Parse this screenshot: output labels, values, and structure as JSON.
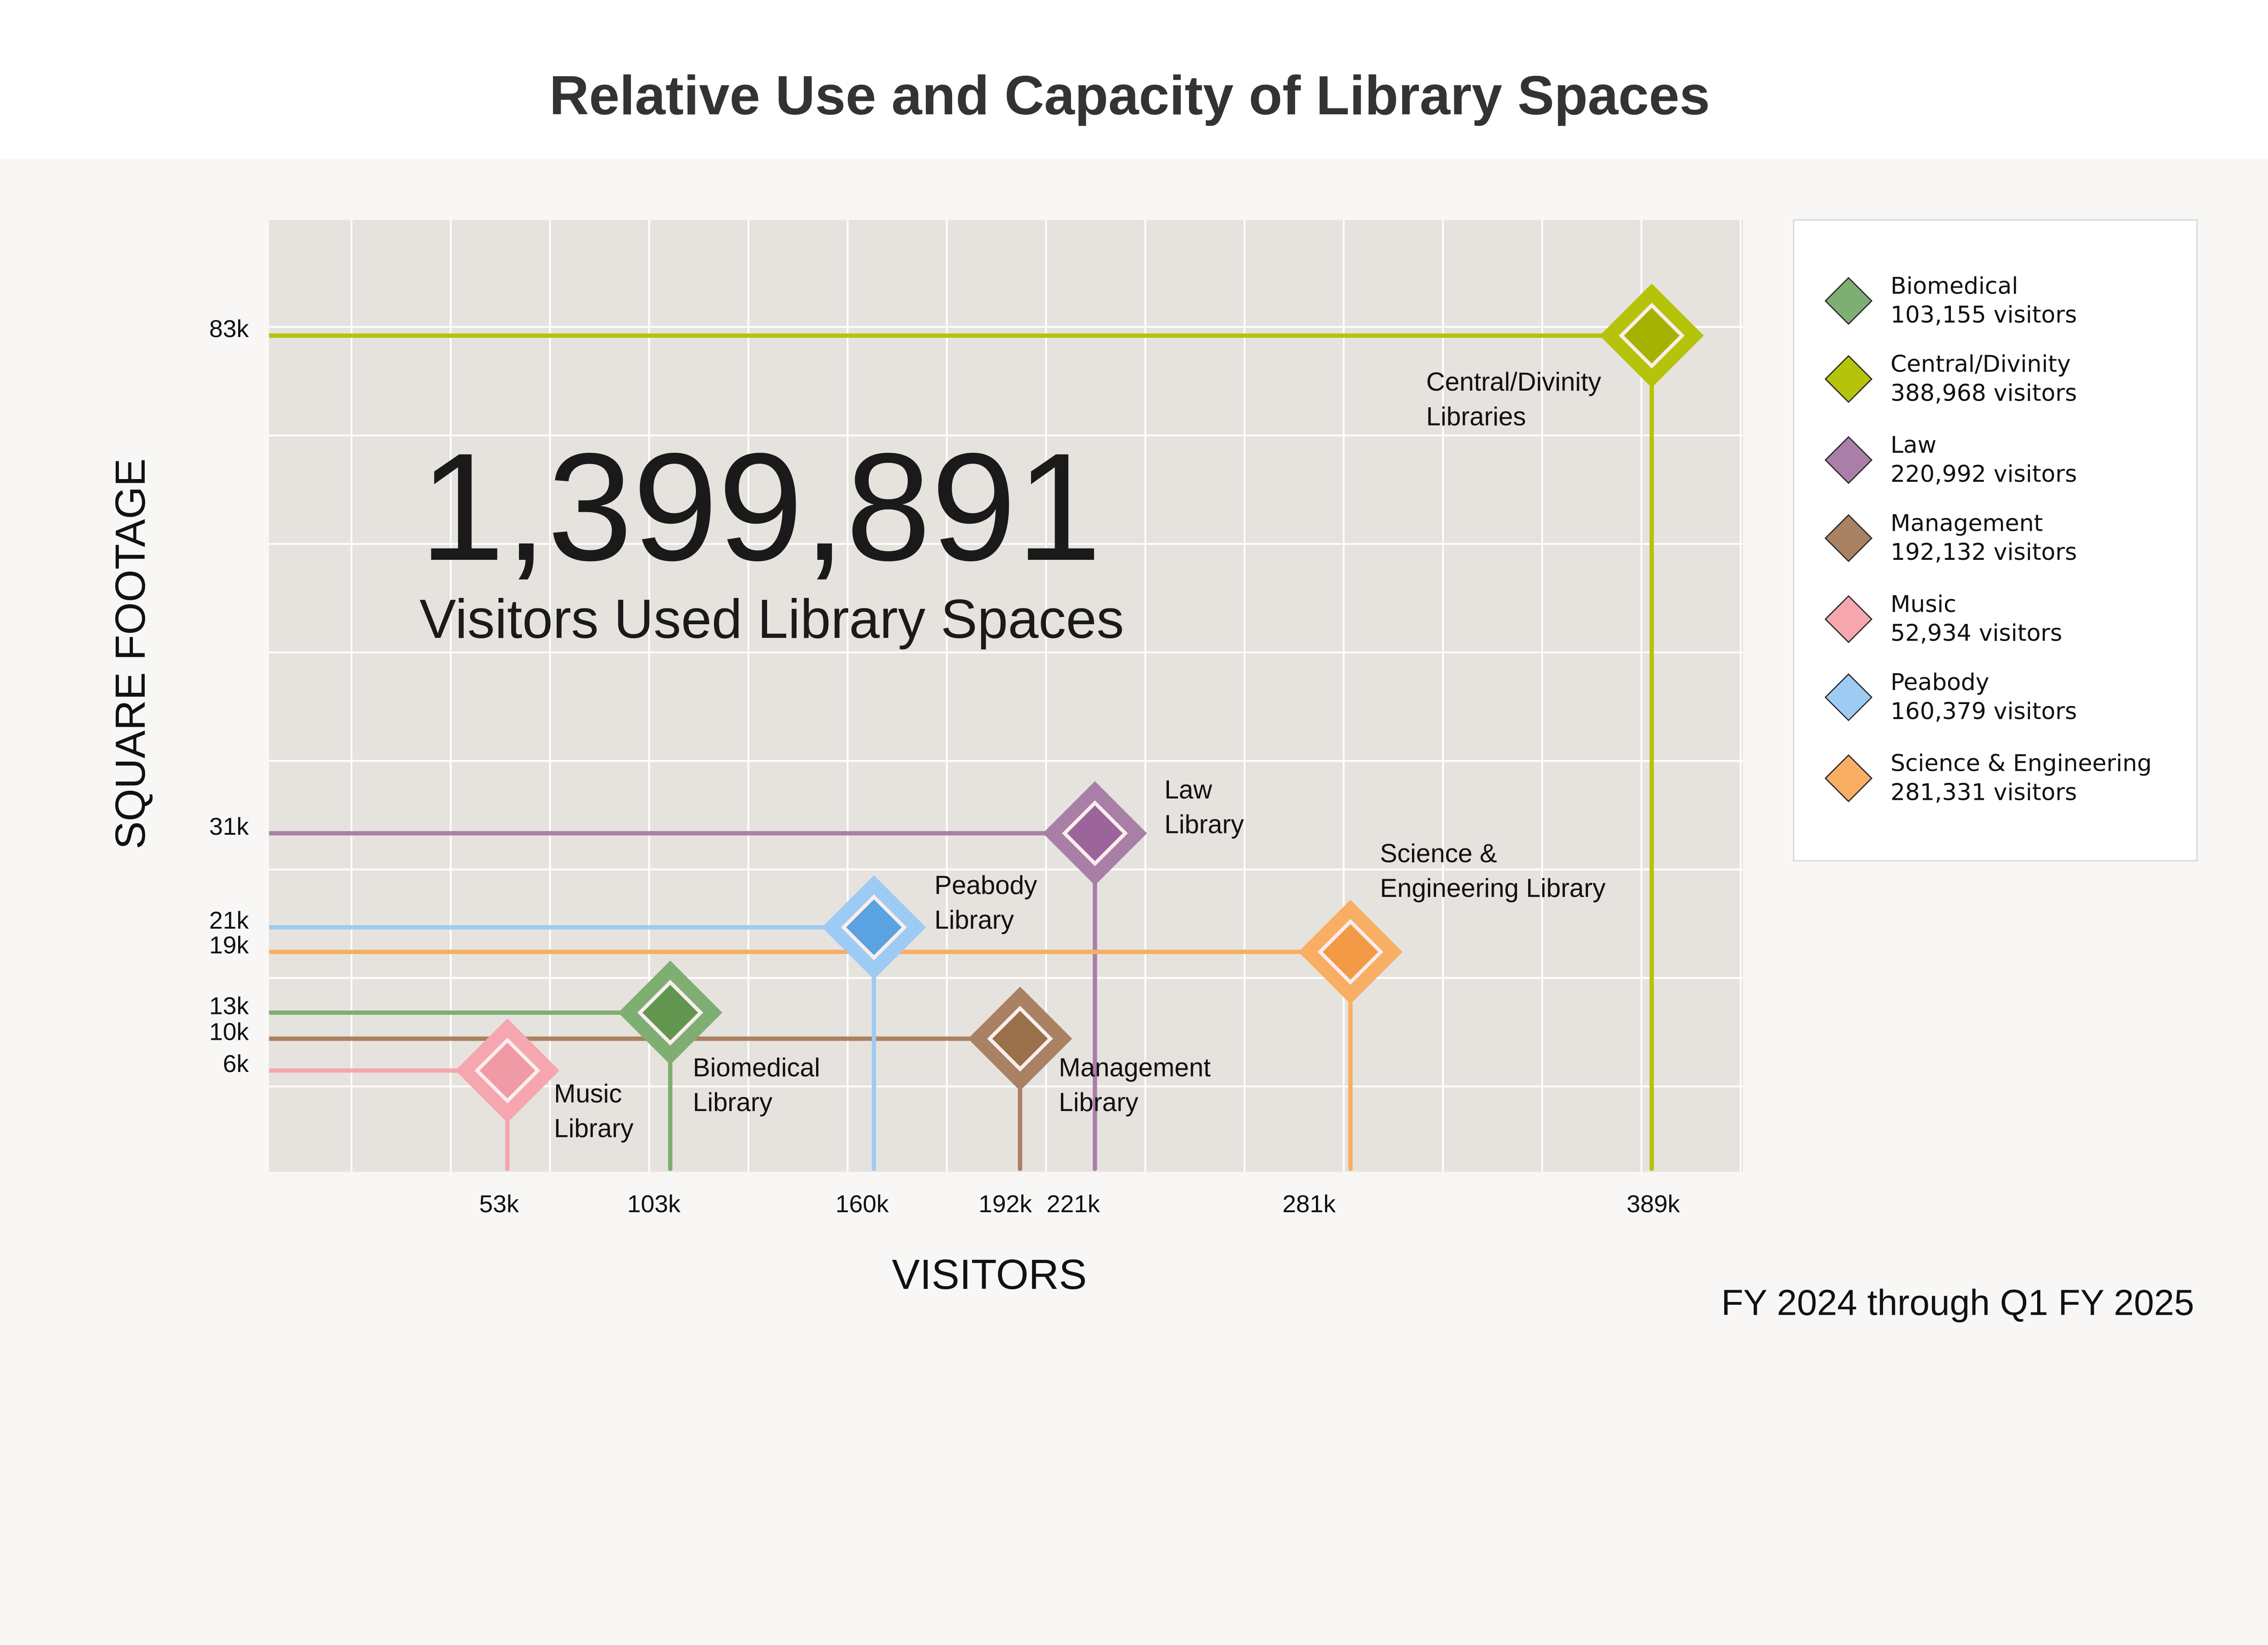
{
  "chart_data": {
    "type": "scatter",
    "title": "Relative Use and Capacity of Library Spaces",
    "xlabel": "VISITORS",
    "ylabel": "SQUARE FOOTAGE",
    "footnote": "FY 2024 through Q1 FY 2025",
    "headline": {
      "value": "1,399,891",
      "caption": "Visitors Used Library Spaces"
    },
    "x_ticks": [
      "53k",
      "103k",
      "160k",
      "192k",
      "221k",
      "281k",
      "389k"
    ],
    "y_ticks": [
      "83k",
      "31k",
      "21k",
      "19k",
      "13k",
      "10k",
      "6k"
    ],
    "grid": true,
    "legend_position": "right",
    "series": [
      {
        "name": "Biomedical",
        "legend_value": "103,155 visitors",
        "visitors": 103155,
        "sqft_k": 13,
        "label": [
          "Biomedical",
          "Library"
        ],
        "color": "#7fae72",
        "inner": "#62964f"
      },
      {
        "name": "Central/Divinity",
        "legend_value": "388,968 visitors",
        "visitors": 388968,
        "sqft_k": 83,
        "label": [
          "Central/Divinity",
          "Libraries"
        ],
        "color": "#b5c40a",
        "inner": "#a5b300"
      },
      {
        "name": "Law",
        "legend_value": "220,992 visitors",
        "visitors": 220992,
        "sqft_k": 31,
        "label": [
          "Law",
          "Library"
        ],
        "color": "#a97fa8",
        "inner": "#9b659b"
      },
      {
        "name": "Management",
        "legend_value": "192,132 visitors",
        "visitors": 192132,
        "sqft_k": 10,
        "label": [
          "Management",
          "Library"
        ],
        "color": "#a98163",
        "inner": "#9a704b"
      },
      {
        "name": "Music",
        "legend_value": "52,934 visitors",
        "visitors": 52934,
        "sqft_k": 6,
        "label": [
          "Music",
          "Library"
        ],
        "color": "#f6a6af",
        "inner": "#f09aa5"
      },
      {
        "name": "Peabody",
        "legend_value": "160,379 visitors",
        "visitors": 160379,
        "sqft_k": 21,
        "label": [
          "Peabody",
          "Library"
        ],
        "color": "#9ecbf3",
        "inner": "#5aa2e0"
      },
      {
        "name": "Science & Engineering",
        "legend_value": "281,331 visitors",
        "visitors": 281331,
        "sqft_k": 19,
        "label": [
          "Science &",
          "Engineering Library"
        ],
        "color": "#f8ae63",
        "inner": "#f29a45"
      }
    ]
  }
}
